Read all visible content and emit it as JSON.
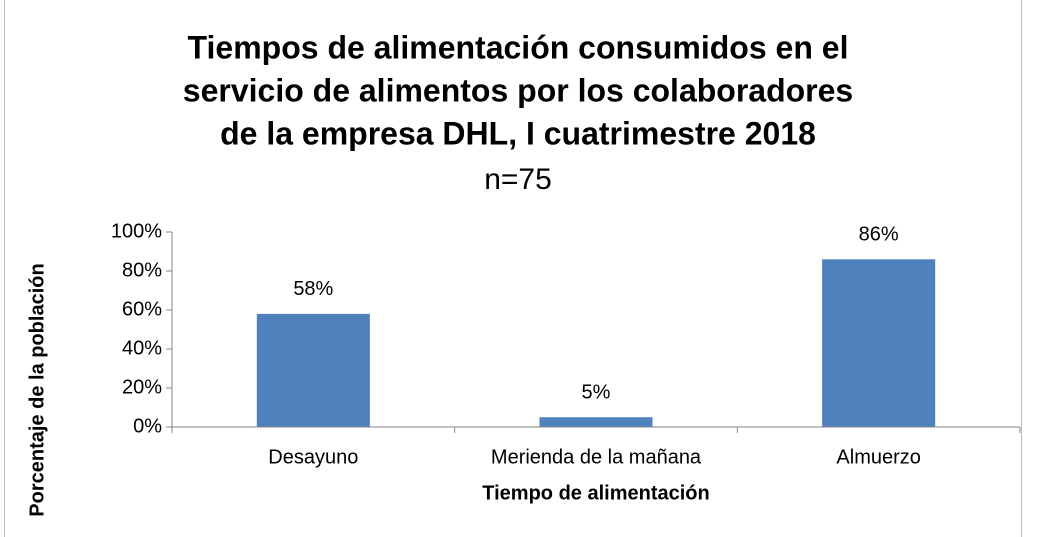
{
  "chart_data": {
    "type": "bar",
    "title": [
      "Tiempos de alimentación consumidos en el",
      "servicio de alimentos por los colaboradores",
      "de la empresa DHL, I cuatrimestre 2018"
    ],
    "subtitle": "n=75",
    "x_label": "Tiempo de alimentación",
    "y_label": "Porcentaje de la población",
    "categories": [
      "Desayuno",
      "Merienda de la mañana",
      "Almuerzo"
    ],
    "values": [
      58,
      5,
      86
    ],
    "value_labels": [
      "58%",
      "5%",
      "86%"
    ],
    "color": "#4f81bd",
    "ylim": [
      0,
      100
    ],
    "yticks": [
      {
        "value": 0,
        "label": "0%"
      },
      {
        "value": 20,
        "label": "20%"
      },
      {
        "value": 40,
        "label": "40%"
      },
      {
        "value": 60,
        "label": "60%"
      },
      {
        "value": 80,
        "label": "80%"
      },
      {
        "value": 100,
        "label": "100%"
      }
    ],
    "grid": false
  }
}
